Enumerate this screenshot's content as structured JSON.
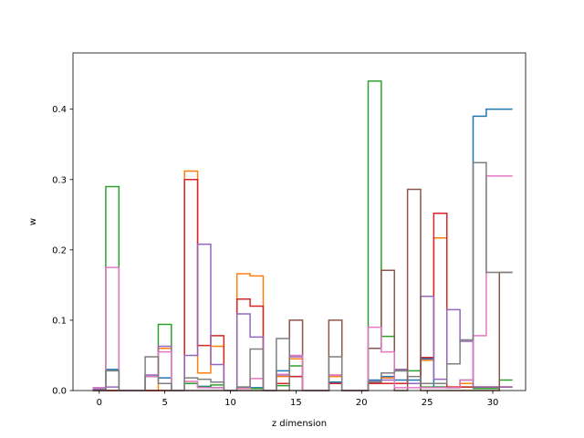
{
  "chart_data": {
    "type": "line",
    "drawstyle": "steps",
    "xlabel": "z dimension",
    "ylabel": "w",
    "xlim": [
      -2,
      32.5
    ],
    "ylim": [
      0,
      0.48
    ],
    "xticks": [
      0,
      5,
      10,
      15,
      20,
      25,
      30
    ],
    "yticks": [
      0.0,
      0.1,
      0.2,
      0.3,
      0.4
    ],
    "ytick_labels": [
      "0.0",
      "0.1",
      "0.2",
      "0.3",
      "0.4"
    ],
    "x": [
      0,
      1,
      2,
      3,
      4,
      5,
      6,
      7,
      8,
      9,
      10,
      11,
      12,
      13,
      14,
      15,
      16,
      17,
      18,
      19,
      20,
      21,
      22,
      23,
      24,
      25,
      26,
      27,
      28,
      29,
      30,
      31
    ],
    "grid": false,
    "legend": "none",
    "series": [
      {
        "color": "#1f77b4",
        "values": [
          0.004,
          0.03,
          0,
          0,
          0.02,
          0.018,
          0,
          0.01,
          0.006,
          0.004,
          0,
          0.004,
          0.004,
          0,
          0.028,
          0.02,
          0,
          0,
          0.012,
          0,
          0,
          0.015,
          0.02,
          0.015,
          0.015,
          0.045,
          0.005,
          0.004,
          0.015,
          0.39,
          0.4,
          0.4
        ]
      },
      {
        "color": "#ff7f0e",
        "values": [
          0,
          0,
          0,
          0,
          0,
          0.06,
          0,
          0.312,
          0.025,
          0.063,
          0,
          0.166,
          0.163,
          0,
          0.02,
          0.045,
          0,
          0,
          0.02,
          0,
          0,
          0.01,
          0.018,
          0.03,
          0.01,
          0.043,
          0.217,
          0.005,
          0.01,
          0.005,
          0.005,
          0.005
        ]
      },
      {
        "color": "#2ca02c",
        "values": [
          0.002,
          0.29,
          0,
          0,
          0.02,
          0.094,
          0,
          0.01,
          0.005,
          0.008,
          0,
          0.005,
          0.003,
          0,
          0.007,
          0.035,
          0,
          0,
          0.01,
          0,
          0,
          0.44,
          0.077,
          0.028,
          0.028,
          0.005,
          0.005,
          0.004,
          0.005,
          0.003,
          0.003,
          0.015
        ]
      },
      {
        "color": "#d62728",
        "values": [
          0,
          0,
          0,
          0,
          0,
          0,
          0,
          0.3,
          0.064,
          0.078,
          0,
          0.13,
          0.12,
          0,
          0.01,
          0.02,
          0,
          0,
          0.01,
          0,
          0,
          0.01,
          0.01,
          0.01,
          0.01,
          0.047,
          0.252,
          0.005,
          0.005,
          0.005,
          0.005,
          0.005
        ]
      },
      {
        "color": "#9467bd",
        "values": [
          0.002,
          0.005,
          0,
          0,
          0.022,
          0.063,
          0,
          0.05,
          0.208,
          0.037,
          0,
          0.109,
          0.076,
          0,
          0.022,
          0.048,
          0,
          0,
          0.022,
          0,
          0,
          0.013,
          0.015,
          0.03,
          0.01,
          0.134,
          0.016,
          0.115,
          0.07,
          0.005,
          0.005,
          0.005
        ]
      },
      {
        "color": "#8c564b",
        "values": [
          0,
          0,
          0,
          0,
          0,
          0,
          0,
          0,
          0,
          0,
          0,
          0,
          0,
          0,
          0,
          0.1,
          0,
          0,
          0.1,
          0,
          0,
          0.06,
          0.171,
          0,
          0.286,
          0,
          0,
          0,
          0,
          0,
          0,
          0.168
        ]
      },
      {
        "color": "#e377c2",
        "values": [
          0.004,
          0.175,
          0,
          0,
          0.02,
          0.055,
          0,
          0.013,
          0.004,
          0.004,
          0,
          0.003,
          0.017,
          0,
          0.023,
          0.05,
          0,
          0,
          0.022,
          0,
          0,
          0.09,
          0.055,
          0.004,
          0.004,
          0.004,
          0.004,
          0.004,
          0.015,
          0.078,
          0.305,
          0.305
        ]
      },
      {
        "color": "#7f7f7f",
        "values": [
          0,
          0.028,
          0,
          0,
          0.048,
          0.01,
          0,
          0.018,
          0.016,
          0.012,
          0,
          0.005,
          0.059,
          0,
          0.074,
          0,
          0,
          0,
          0.048,
          0,
          0,
          0.012,
          0.025,
          0.028,
          0.02,
          0.01,
          0.01,
          0.038,
          0.072,
          0.324,
          0.168,
          0.168
        ]
      }
    ]
  }
}
